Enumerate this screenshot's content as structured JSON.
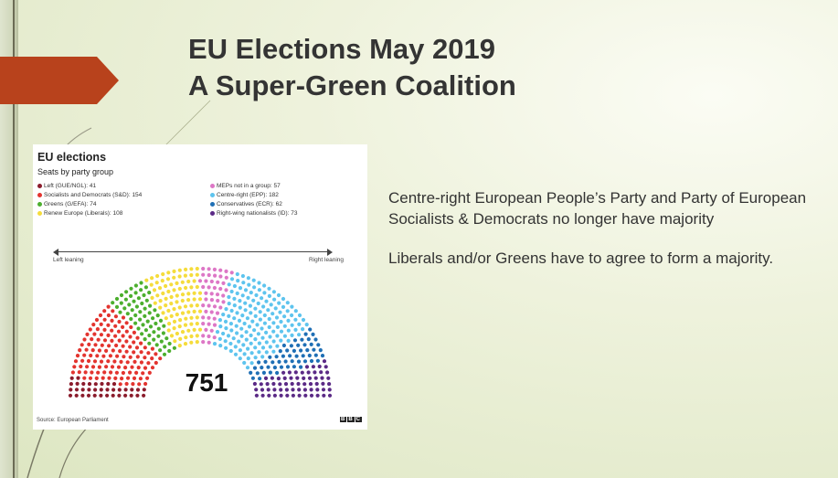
{
  "slide": {
    "title_line1": "EU Elections May 2019",
    "title_line2": "A Super-Green Coalition",
    "body_paragraph1": "Centre-right European People’s Party and Party of European Socialists & Democrats no longer have majority",
    "body_paragraph2": "Liberals and/or Greens have to agree to form a majority."
  },
  "chart_data": {
    "type": "hemicycle",
    "title": "EU elections",
    "subtitle": "Seats by party group",
    "total_seats": "751",
    "left_label": "Left leaning",
    "right_label": "Right leaning",
    "source": "Source: European Parliament",
    "logo": "BBC",
    "legend_left": [
      {
        "label": "Left (GUE/NGL): 41",
        "color": "#8b1c2c"
      },
      {
        "label": "Socialists and Democrats (S&D): 154",
        "color": "#e3342f"
      },
      {
        "label": "Greens (G/EFA): 74",
        "color": "#4caf2e"
      },
      {
        "label": "Renew Europe (Liberals): 108",
        "color": "#f5dc3c"
      }
    ],
    "legend_right": [
      {
        "label": "MEPs not in a group: 57",
        "color": "#dd77c6"
      },
      {
        "label": "Centre-right (EPP): 182",
        "color": "#5ec4ee"
      },
      {
        "label": "Conservatives (ECR): 62",
        "color": "#1f6fb5"
      },
      {
        "label": "Right-wing nationalists (ID): 73",
        "color": "#5b2a86"
      }
    ],
    "series": [
      {
        "name": "Left (GUE/NGL)",
        "value": 41,
        "color": "#8b1c2c"
      },
      {
        "name": "Socialists and Democrats (S&D)",
        "value": 154,
        "color": "#e3342f"
      },
      {
        "name": "Greens (G/EFA)",
        "value": 74,
        "color": "#4caf2e"
      },
      {
        "name": "Renew Europe (Liberals)",
        "value": 108,
        "color": "#f5dc3c"
      },
      {
        "name": "MEPs not in a group",
        "value": 57,
        "color": "#dd77c6"
      },
      {
        "name": "Centre-right (EPP)",
        "value": 182,
        "color": "#5ec4ee"
      },
      {
        "name": "Conservatives (ECR)",
        "value": 62,
        "color": "#1f6fb5"
      },
      {
        "name": "Right-wing nationalists (ID)",
        "value": 73,
        "color": "#5b2a86"
      }
    ]
  },
  "colors": {
    "arrow": "#b8421c",
    "title_text": "#343434"
  }
}
